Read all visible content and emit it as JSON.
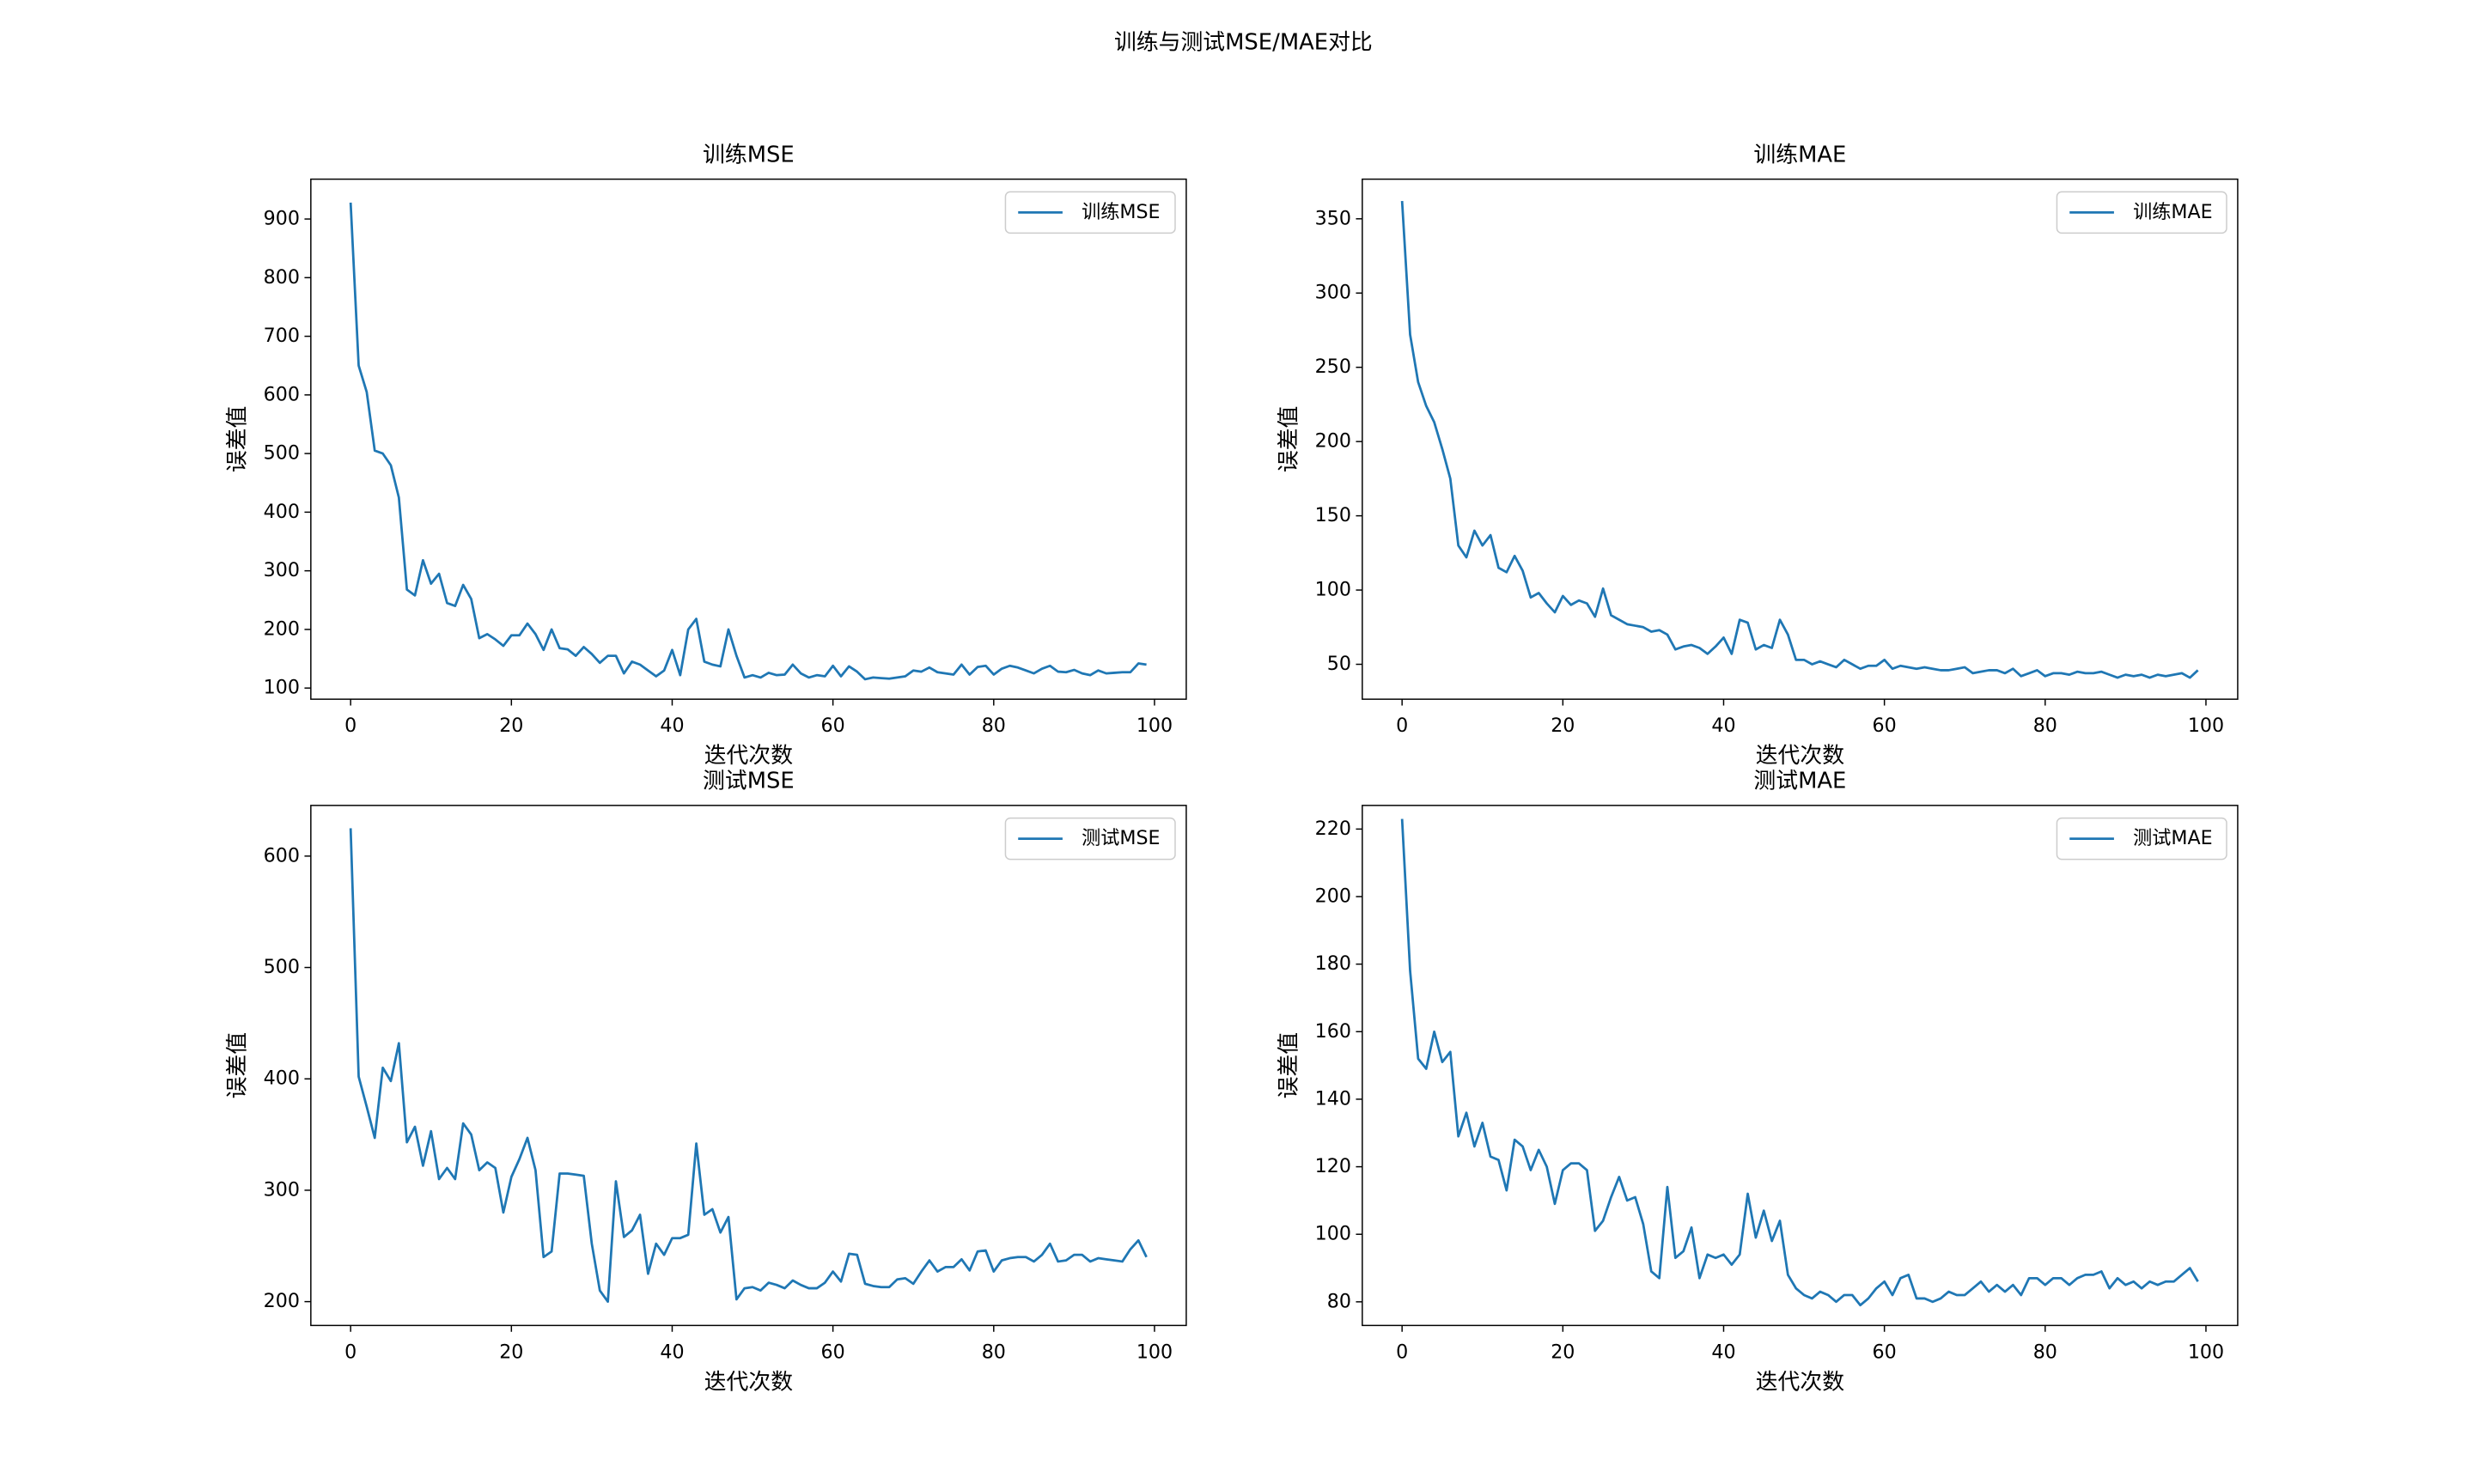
{
  "title": "训练与测试MSE/MAE对比",
  "chart_data": [
    {
      "type": "line",
      "title": "训练MSE",
      "xlabel": "迭代次数",
      "ylabel": "误差值",
      "legend": "upper right",
      "xlim": [
        -4.95,
        103.95
      ],
      "ylim": [
        81,
        968
      ],
      "xticks": [
        0,
        20,
        40,
        60,
        80,
        100
      ],
      "yticks": [
        100,
        200,
        300,
        400,
        500,
        600,
        700,
        800,
        900
      ],
      "x": [
        0,
        1,
        2,
        3,
        4,
        5,
        6,
        7,
        8,
        9,
        10,
        11,
        12,
        13,
        14,
        15,
        16,
        17,
        18,
        19,
        20,
        21,
        22,
        23,
        24,
        25,
        26,
        27,
        28,
        29,
        30,
        31,
        32,
        33,
        34,
        35,
        36,
        37,
        38,
        39,
        40,
        41,
        42,
        43,
        44,
        45,
        46,
        47,
        48,
        49,
        50,
        51,
        52,
        53,
        54,
        55,
        56,
        57,
        58,
        59,
        60,
        61,
        62,
        63,
        64,
        65,
        66,
        67,
        68,
        69,
        70,
        71,
        72,
        73,
        74,
        75,
        76,
        77,
        78,
        79,
        80,
        81,
        82,
        83,
        84,
        85,
        86,
        87,
        88,
        89,
        90,
        91,
        92,
        93,
        94,
        95,
        96,
        97,
        98,
        99
      ],
      "series": [
        {
          "name": "训练MSE",
          "color": "#1f77b4",
          "values": [
            928,
            650,
            605,
            505,
            500,
            480,
            425,
            268,
            258,
            318,
            278,
            295,
            245,
            240,
            276,
            252,
            185,
            192,
            183,
            172,
            190,
            190,
            210,
            192,
            165,
            200,
            168,
            166,
            155,
            170,
            158,
            143,
            155,
            155,
            125,
            145,
            140,
            130,
            120,
            130,
            165,
            122,
            200,
            218,
            145,
            140,
            137,
            200,
            155,
            118,
            122,
            118,
            126,
            122,
            123,
            140,
            125,
            118,
            122,
            120,
            138,
            120,
            137,
            128,
            115,
            118,
            117,
            116,
            118,
            120,
            130,
            128,
            135,
            127,
            125,
            123,
            140,
            123,
            136,
            138,
            123,
            133,
            138,
            135,
            130,
            125,
            133,
            138,
            128,
            127,
            131,
            125,
            122,
            130,
            125,
            126,
            127,
            127,
            142,
            140
          ]
        }
      ]
    },
    {
      "type": "line",
      "title": "训练MAE",
      "xlabel": "迭代次数",
      "ylabel": "误差值",
      "legend": "upper right",
      "xlim": [
        -4.95,
        103.95
      ],
      "ylim": [
        26.5,
        376.7
      ],
      "xticks": [
        0,
        20,
        40,
        60,
        80,
        100
      ],
      "yticks": [
        50,
        100,
        150,
        200,
        250,
        300,
        350
      ],
      "x": [
        0,
        1,
        2,
        3,
        4,
        5,
        6,
        7,
        8,
        9,
        10,
        11,
        12,
        13,
        14,
        15,
        16,
        17,
        18,
        19,
        20,
        21,
        22,
        23,
        24,
        25,
        26,
        27,
        28,
        29,
        30,
        31,
        32,
        33,
        34,
        35,
        36,
        37,
        38,
        39,
        40,
        41,
        42,
        43,
        44,
        45,
        46,
        47,
        48,
        49,
        50,
        51,
        52,
        53,
        54,
        55,
        56,
        57,
        58,
        59,
        60,
        61,
        62,
        63,
        64,
        65,
        66,
        67,
        68,
        69,
        70,
        71,
        72,
        73,
        74,
        75,
        76,
        77,
        78,
        79,
        80,
        81,
        82,
        83,
        84,
        85,
        86,
        87,
        88,
        89,
        90,
        91,
        92,
        93,
        94,
        95,
        96,
        97,
        98,
        99
      ],
      "series": [
        {
          "name": "训练MAE",
          "color": "#1f77b4",
          "values": [
            362,
            272,
            240,
            224,
            213,
            195,
            175,
            130,
            122,
            140,
            130,
            137,
            115,
            112,
            123,
            113,
            95,
            98,
            91,
            85,
            96,
            90,
            93,
            91,
            82,
            101,
            83,
            80,
            77,
            76,
            75,
            72,
            73,
            70,
            60,
            62,
            63,
            61,
            57,
            62,
            68,
            57,
            80,
            78,
            60,
            63,
            61,
            80,
            70,
            53,
            53,
            50,
            52,
            50,
            48,
            53,
            50,
            47,
            49,
            49,
            53,
            47,
            49,
            48,
            47,
            48,
            47,
            46,
            46,
            47,
            48,
            44,
            45,
            46,
            46,
            44,
            47,
            42,
            44,
            46,
            42,
            44,
            44,
            43,
            45,
            44,
            44,
            45,
            43,
            41,
            43,
            42,
            43,
            41,
            43,
            42,
            43,
            44,
            41,
            46
          ]
        }
      ]
    },
    {
      "type": "line",
      "title": "测试MSE",
      "xlabel": "迭代次数",
      "ylabel": "误差值",
      "legend": "upper right",
      "xlim": [
        -4.95,
        103.95
      ],
      "ylim": [
        178.6,
        645.5
      ],
      "xticks": [
        0,
        20,
        40,
        60,
        80,
        100
      ],
      "yticks": [
        200,
        300,
        400,
        500,
        600
      ],
      "x": [
        0,
        1,
        2,
        3,
        4,
        5,
        6,
        7,
        8,
        9,
        10,
        11,
        12,
        13,
        14,
        15,
        16,
        17,
        18,
        19,
        20,
        21,
        22,
        23,
        24,
        25,
        26,
        27,
        28,
        29,
        30,
        31,
        32,
        33,
        34,
        35,
        36,
        37,
        38,
        39,
        40,
        41,
        42,
        43,
        44,
        45,
        46,
        47,
        48,
        49,
        50,
        51,
        52,
        53,
        54,
        55,
        56,
        57,
        58,
        59,
        60,
        61,
        62,
        63,
        64,
        65,
        66,
        67,
        68,
        69,
        70,
        71,
        72,
        73,
        74,
        75,
        76,
        77,
        78,
        79,
        80,
        81,
        82,
        83,
        84,
        85,
        86,
        87,
        88,
        89,
        90,
        91,
        92,
        93,
        94,
        95,
        96,
        97,
        98,
        99
      ],
      "series": [
        {
          "name": "测试MSE",
          "color": "#1f77b4",
          "values": [
            625,
            402,
            375,
            347,
            410,
            398,
            432,
            343,
            357,
            322,
            353,
            310,
            320,
            310,
            360,
            350,
            318,
            325,
            320,
            280,
            312,
            328,
            347,
            318,
            240,
            245,
            315,
            315,
            314,
            313,
            252,
            210,
            200,
            308,
            258,
            264,
            278,
            225,
            252,
            242,
            257,
            257,
            260,
            342,
            278,
            283,
            262,
            276,
            202,
            212,
            213,
            210,
            217,
            215,
            212,
            219,
            215,
            212,
            212,
            217,
            227,
            218,
            243,
            242,
            216,
            214,
            213,
            213,
            220,
            221,
            216,
            227,
            237,
            227,
            231,
            231,
            238,
            228,
            245,
            246,
            227,
            237,
            239,
            240,
            240,
            236,
            242,
            252,
            236,
            237,
            242,
            242,
            236,
            239,
            238,
            237,
            236,
            247,
            255,
            240
          ]
        }
      ]
    },
    {
      "type": "line",
      "title": "测试MAE",
      "xlabel": "迭代次数",
      "ylabel": "误差值",
      "legend": "upper right",
      "xlim": [
        -4.95,
        103.95
      ],
      "ylim": [
        73,
        227
      ],
      "xticks": [
        0,
        20,
        40,
        60,
        80,
        100
      ],
      "yticks": [
        80,
        100,
        120,
        140,
        160,
        180,
        200,
        220
      ],
      "x": [
        0,
        1,
        2,
        3,
        4,
        5,
        6,
        7,
        8,
        9,
        10,
        11,
        12,
        13,
        14,
        15,
        16,
        17,
        18,
        19,
        20,
        21,
        22,
        23,
        24,
        25,
        26,
        27,
        28,
        29,
        30,
        31,
        32,
        33,
        34,
        35,
        36,
        37,
        38,
        39,
        40,
        41,
        42,
        43,
        44,
        45,
        46,
        47,
        48,
        49,
        50,
        51,
        52,
        53,
        54,
        55,
        56,
        57,
        58,
        59,
        60,
        61,
        62,
        63,
        64,
        65,
        66,
        67,
        68,
        69,
        70,
        71,
        72,
        73,
        74,
        75,
        76,
        77,
        78,
        79,
        80,
        81,
        82,
        83,
        84,
        85,
        86,
        87,
        88,
        89,
        90,
        91,
        92,
        93,
        94,
        95,
        96,
        97,
        98,
        99
      ],
      "series": [
        {
          "name": "测试MAE",
          "color": "#1f77b4",
          "values": [
            223,
            178,
            152,
            149,
            160,
            151,
            154,
            129,
            136,
            126,
            133,
            123,
            122,
            113,
            128,
            126,
            119,
            125,
            120,
            109,
            119,
            121,
            121,
            119,
            101,
            104,
            111,
            117,
            110,
            111,
            103,
            89,
            87,
            114,
            93,
            95,
            102,
            87,
            94,
            93,
            94,
            91,
            94,
            112,
            99,
            107,
            98,
            104,
            88,
            84,
            82,
            81,
            83,
            82,
            80,
            82,
            82,
            79,
            81,
            84,
            86,
            82,
            87,
            88,
            81,
            81,
            80,
            81,
            83,
            82,
            82,
            84,
            86,
            83,
            85,
            83,
            85,
            82,
            87,
            87,
            85,
            87,
            87,
            85,
            87,
            88,
            88,
            89,
            84,
            87,
            85,
            86,
            84,
            86,
            85,
            86,
            86,
            88,
            90,
            86
          ]
        }
      ]
    }
  ]
}
